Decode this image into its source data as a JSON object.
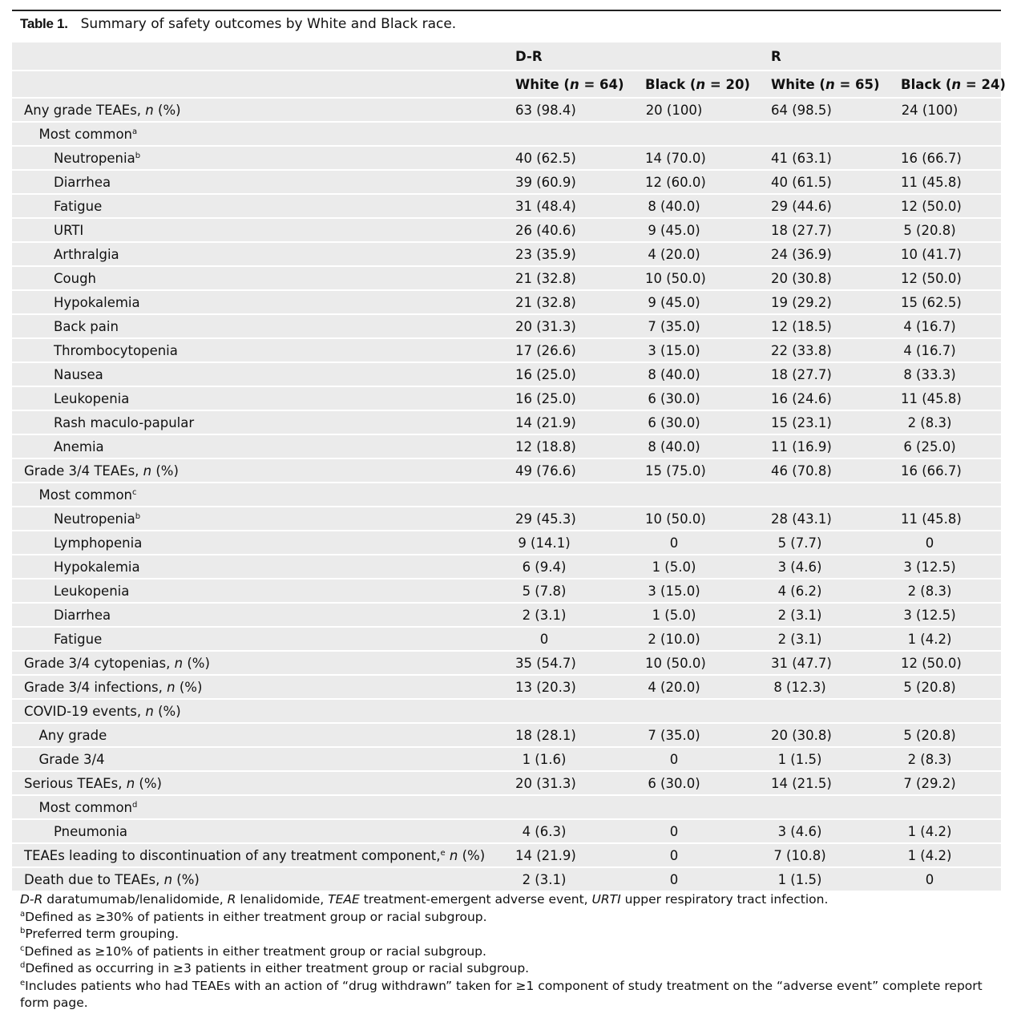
{
  "title": {
    "label": "Table 1.",
    "text": "Summary of safety outcomes by White and Black race."
  },
  "table": {
    "groups": [
      "D-R",
      "R"
    ],
    "columns": [
      [
        "White (",
        {
          "i": "n"
        },
        " = 64)"
      ],
      [
        "Black (",
        {
          "i": "n"
        },
        " = 20)"
      ],
      [
        "White (",
        {
          "i": "n"
        },
        " = 65)"
      ],
      [
        "Black (",
        {
          "i": "n"
        },
        " = 24)"
      ]
    ],
    "rows": [
      {
        "label": [
          "Any grade TEAEs, ",
          {
            "i": "n"
          },
          " (%)"
        ],
        "cells": [
          "63 (98.4)",
          "20 (100)",
          "64 (98.5)",
          "24 (100)"
        ]
      },
      {
        "label": [
          "Most common",
          {
            "sup": "a"
          }
        ],
        "cells": []
      },
      {
        "label": [
          "Neutropenia",
          {
            "sup": "b"
          }
        ],
        "cells": [
          "40 (62.5)",
          "14 (70.0)",
          "41 (63.1)",
          "16 (66.7)"
        ]
      },
      {
        "label": [
          "Diarrhea"
        ],
        "cells": [
          "39 (60.9)",
          "12 (60.0)",
          "40 (61.5)",
          "11 (45.8)"
        ]
      },
      {
        "label": [
          "Fatigue"
        ],
        "cells": [
          "31 (48.4)",
          "8 (40.0)",
          "29 (44.6)",
          "12 (50.0)"
        ]
      },
      {
        "label": [
          "URTI"
        ],
        "cells": [
          "26 (40.6)",
          "9 (45.0)",
          "18 (27.7)",
          "5 (20.8)"
        ]
      },
      {
        "label": [
          "Arthralgia"
        ],
        "cells": [
          "23 (35.9)",
          "4 (20.0)",
          "24 (36.9)",
          "10 (41.7)"
        ]
      },
      {
        "label": [
          "Cough"
        ],
        "cells": [
          "21 (32.8)",
          "10 (50.0)",
          "20 (30.8)",
          "12 (50.0)"
        ]
      },
      {
        "label": [
          "Hypokalemia"
        ],
        "cells": [
          "21 (32.8)",
          "9 (45.0)",
          "19 (29.2)",
          "15 (62.5)"
        ]
      },
      {
        "label": [
          "Back pain"
        ],
        "cells": [
          "20 (31.3)",
          "7 (35.0)",
          "12 (18.5)",
          "4 (16.7)"
        ]
      },
      {
        "label": [
          "Thrombocytopenia"
        ],
        "cells": [
          "17 (26.6)",
          "3 (15.0)",
          "22 (33.8)",
          "4 (16.7)"
        ]
      },
      {
        "label": [
          "Nausea"
        ],
        "cells": [
          "16 (25.0)",
          "8 (40.0)",
          "18 (27.7)",
          "8 (33.3)"
        ]
      },
      {
        "label": [
          "Leukopenia"
        ],
        "cells": [
          "16 (25.0)",
          "6 (30.0)",
          "16 (24.6)",
          "11 (45.8)"
        ]
      },
      {
        "label": [
          "Rash maculo-papular"
        ],
        "cells": [
          "14 (21.9)",
          "6 (30.0)",
          "15 (23.1)",
          "2 (8.3)"
        ]
      },
      {
        "label": [
          "Anemia"
        ],
        "cells": [
          "12 (18.8)",
          "8 (40.0)",
          "11 (16.9)",
          "6 (25.0)"
        ]
      },
      {
        "label": [
          "Grade 3/4 TEAEs, ",
          {
            "i": "n"
          },
          " (%)"
        ],
        "cells": [
          "49 (76.6)",
          "15 (75.0)",
          "46 (70.8)",
          "16 (66.7)"
        ]
      },
      {
        "label": [
          "Most common",
          {
            "sup": "c"
          }
        ],
        "cells": []
      },
      {
        "label": [
          "Neutropenia",
          {
            "sup": "b"
          }
        ],
        "cells": [
          "29 (45.3)",
          "10 (50.0)",
          "28 (43.1)",
          "11 (45.8)"
        ]
      },
      {
        "label": [
          "Lymphopenia"
        ],
        "cells": [
          "9 (14.1)",
          "0",
          "5 (7.7)",
          "0"
        ]
      },
      {
        "label": [
          "Hypokalemia"
        ],
        "cells": [
          "6 (9.4)",
          "1 (5.0)",
          "3 (4.6)",
          "3 (12.5)"
        ]
      },
      {
        "label": [
          "Leukopenia"
        ],
        "cells": [
          "5 (7.8)",
          "3 (15.0)",
          "4 (6.2)",
          "2 (8.3)"
        ]
      },
      {
        "label": [
          "Diarrhea"
        ],
        "cells": [
          "2 (3.1)",
          "1 (5.0)",
          "2 (3.1)",
          "3 (12.5)"
        ]
      },
      {
        "label": [
          "Fatigue"
        ],
        "cells": [
          "0",
          "2 (10.0)",
          "2 (3.1)",
          "1 (4.2)"
        ]
      },
      {
        "label": [
          "Grade 3/4 cytopenias, ",
          {
            "i": "n"
          },
          " (%)"
        ],
        "cells": [
          "35 (54.7)",
          "10 (50.0)",
          "31 (47.7)",
          "12 (50.0)"
        ]
      },
      {
        "label": [
          "Grade 3/4 infections, ",
          {
            "i": "n"
          },
          " (%)"
        ],
        "cells": [
          "13 (20.3)",
          "4 (20.0)",
          "8 (12.3)",
          "5 (20.8)"
        ]
      },
      {
        "label": [
          "COVID-19 events, ",
          {
            "i": "n"
          },
          " (%)"
        ],
        "cells": []
      },
      {
        "label": [
          "Any grade"
        ],
        "cells": [
          "18 (28.1)",
          "7 (35.0)",
          "20 (30.8)",
          "5 (20.8)"
        ]
      },
      {
        "label": [
          "Grade 3/4"
        ],
        "cells": [
          "1 (1.6)",
          "0",
          "1 (1.5)",
          "2 (8.3)"
        ]
      },
      {
        "label": [
          "Serious TEAEs, ",
          {
            "i": "n"
          },
          " (%)"
        ],
        "cells": [
          "20 (31.3)",
          "6 (30.0)",
          "14 (21.5)",
          "7 (29.2)"
        ]
      },
      {
        "label": [
          "Most common",
          {
            "sup": "d"
          }
        ],
        "cells": []
      },
      {
        "label": [
          "Pneumonia"
        ],
        "cells": [
          "4 (6.3)",
          "0",
          "3 (4.6)",
          "1 (4.2)"
        ]
      },
      {
        "label": [
          "TEAEs leading to discontinuation of any treatment component,",
          {
            "sup": "e"
          },
          " ",
          {
            "i": "n"
          },
          " (%)"
        ],
        "cells": [
          "14 (21.9)",
          "0",
          "7 (10.8)",
          "1 (4.2)"
        ]
      },
      {
        "label": [
          "Death due to TEAEs, ",
          {
            "i": "n"
          },
          " (%)"
        ],
        "cells": [
          "2 (3.1)",
          "0",
          "1 (1.5)",
          "0"
        ]
      }
    ]
  },
  "footnotes": [
    [
      {
        "i": "D-R"
      },
      " daratumumab/lenalidomide, ",
      {
        "i": "R"
      },
      " lenalidomide, ",
      {
        "i": "TEAE"
      },
      " treatment-emergent adverse event, ",
      {
        "i": "URTI"
      },
      " upper respiratory tract infection."
    ],
    [
      {
        "sup": "a"
      },
      "Defined as ≥30% of patients in either treatment group or racial subgroup."
    ],
    [
      {
        "sup": "b"
      },
      "Preferred term grouping."
    ],
    [
      {
        "sup": "c"
      },
      "Defined as ≥10% of patients in either treatment group or racial subgroup."
    ],
    [
      {
        "sup": "d"
      },
      "Defined as occurring in ≥3 patients in either treatment group or racial subgroup."
    ],
    [
      {
        "sup": "e"
      },
      "Includes patients who had TEAEs with an action of “drug withdrawn” taken for ≥1 component of study treatment on the “adverse event” complete report form page."
    ]
  ]
}
